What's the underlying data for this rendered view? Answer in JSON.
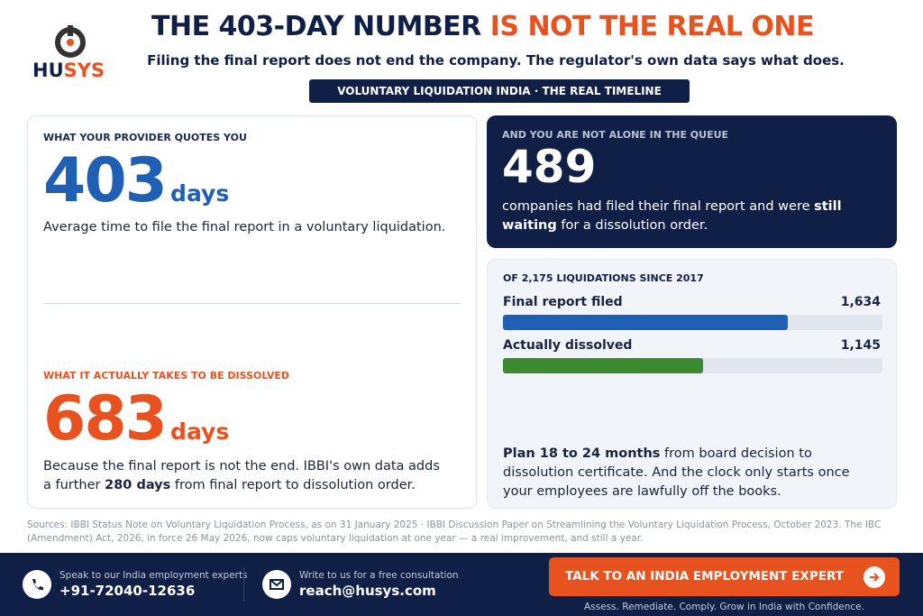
{
  "logo": {
    "text_a": "HU",
    "text_b": "SYS"
  },
  "header": {
    "title_a": "THE 403-DAY NUMBER",
    "title_b": "IS NOT THE REAL ONE",
    "subtitle": "Filing the final report does not end the company. The regulator's own data says what does.",
    "badge": "VOLUNTARY LIQUIDATION INDIA · THE REAL TIMELINE"
  },
  "quoted": {
    "label": "WHAT YOUR PROVIDER QUOTES YOU",
    "number": "403",
    "unit": "days",
    "text": "Average time to file the final report in a voluntary liquidation."
  },
  "actual": {
    "label": "WHAT IT ACTUALLY TAKES TO BE DISSOLVED",
    "number": "683",
    "unit": "days",
    "text_a": "Because the final report is not the end. IBBI's own data adds a further ",
    "text_b": "280 days",
    "text_c": " from final report to dissolution order."
  },
  "queue": {
    "label": "AND YOU ARE NOT ALONE IN THE QUEUE",
    "number": "489",
    "text_a": "companies had filed their final report and were ",
    "text_b": "still waiting",
    "text_c": " for a dissolution order."
  },
  "bars": {
    "title": "OF 2,175 LIQUIDATIONS SINCE 2017",
    "total": 2175,
    "rows": [
      {
        "label": "Final report filed",
        "value": 1634,
        "value_label": "1,634",
        "color": "#1f5fb4"
      },
      {
        "label": "Actually dissolved",
        "value": 1145,
        "value_label": "1,145",
        "color": "#3b8a2f"
      }
    ],
    "note_a": "Plan 18 to 24 months",
    "note_b": " from board decision to dissolution certificate. And the clock only starts once your employees are lawfully off the books."
  },
  "sources": "Sources: IBBI Status Note on Voluntary Liquidation Process, as on 31 January 2025 · IBBI Discussion Paper on Streamlining the Voluntary Liquidation Process, October 2023. The IBC (Amendment) Act, 2026, in force 26 May 2026, now caps voluntary liquidation at one year — a real improvement, and still a year.",
  "footer": {
    "phone_label": "Speak to our India employment experts",
    "phone": "+91-72040-12636",
    "email_label": "Write to us for a free consultation",
    "email": "reach@husys.com",
    "cta": "TALK TO AN INDIA EMPLOYMENT EXPERT",
    "tagline": "Assess. Remediate. Comply. Grow in India with Confidence."
  }
}
